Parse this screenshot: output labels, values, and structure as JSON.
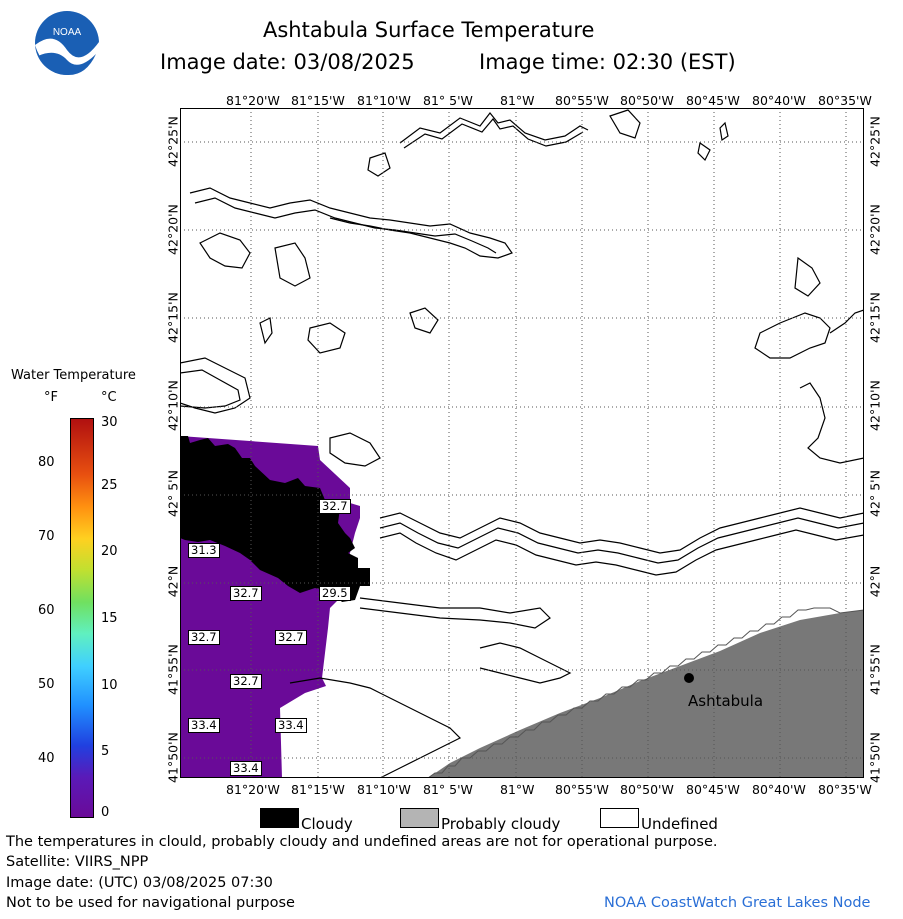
{
  "header": {
    "title": "Ashtabula Surface Temperature",
    "image_date_label": "Image date: 03/08/2025",
    "image_time_label": "Image time: 02:30 (EST)",
    "logo_text": "NOAA"
  },
  "map": {
    "top_lon_labels": [
      "81°20'W",
      "81°15'W",
      "81°10'W",
      "81° 5'W",
      "81°W",
      "80°55'W",
      "80°50'W",
      "80°45'W",
      "80°40'W",
      "80°35'W"
    ],
    "bottom_lon_labels": [
      "81°20'W",
      "81°15'W",
      "81°10'W",
      "81° 5'W",
      "81°W",
      "80°55'W",
      "80°50'W",
      "80°45'W",
      "80°40'W",
      "80°35'W"
    ],
    "lat_labels": [
      "42°25'N",
      "42°20'N",
      "42°15'N",
      "42°10'N",
      "42° 5'N",
      "42°N",
      "41°55'N",
      "41°50'N"
    ],
    "city_label": "Ashtabula",
    "temperature_labels": [
      "32.7",
      "31.3",
      "32.7",
      "29.5",
      "32.7",
      "32.7",
      "32.7",
      "33.4",
      "33.4",
      "33.4"
    ],
    "colors": {
      "water": "#6a0a98",
      "cloud": "#000000",
      "land": "#787878",
      "probably_cloudy": "#b4b4b4"
    }
  },
  "colorbar": {
    "title": "Water Temperature",
    "unit_f": "°F",
    "unit_c": "°C",
    "f_ticks": [
      "80",
      "70",
      "60",
      "50",
      "40"
    ],
    "c_ticks": [
      "30",
      "25",
      "20",
      "15",
      "10",
      "5",
      "0"
    ],
    "range_c": [
      0,
      30
    ]
  },
  "legend": {
    "cloudy": "Cloudy",
    "probably_cloudy": "Probably cloudy",
    "undefined": "Undefined"
  },
  "footer": {
    "disclaimer": "The temperatures in clould, probably cloudy and undefined areas are not for operational purpose.",
    "satellite": "Satellite: VIIRS_NPP",
    "utc_date": "Image date: (UTC) 03/08/2025  07:30",
    "nav_warning": "Not to be used for navigational purpose",
    "credit": "NOAA CoastWatch Great Lakes Node"
  }
}
